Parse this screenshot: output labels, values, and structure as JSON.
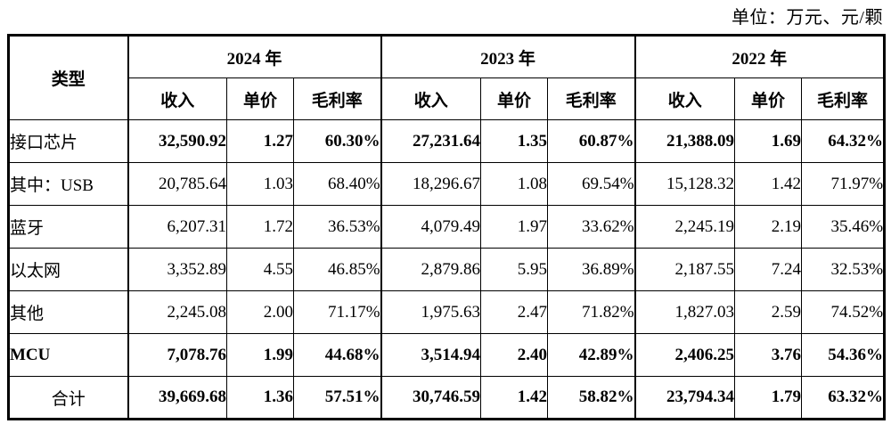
{
  "meta": {
    "unit_note": "单位：万元、元/颗"
  },
  "table": {
    "type": "table",
    "corner_header": "类型",
    "year_groups": [
      {
        "label": "2024 年"
      },
      {
        "label": "2023 年"
      },
      {
        "label": "2022 年"
      }
    ],
    "sub_headers": [
      "收入",
      "单价",
      "毛利率"
    ],
    "rows": [
      {
        "label": "接口芯片",
        "bold_label": false,
        "bold_values": true,
        "center_label": false,
        "values": [
          "32,590.92",
          "1.27",
          "60.30%",
          "27,231.64",
          "1.35",
          "60.87%",
          "21,388.09",
          "1.69",
          "64.32%"
        ]
      },
      {
        "label": "其中：USB",
        "bold_label": false,
        "bold_values": false,
        "center_label": false,
        "values": [
          "20,785.64",
          "1.03",
          "68.40%",
          "18,296.67",
          "1.08",
          "69.54%",
          "15,128.32",
          "1.42",
          "71.97%"
        ]
      },
      {
        "label": "蓝牙",
        "bold_label": false,
        "bold_values": false,
        "center_label": false,
        "values": [
          "6,207.31",
          "1.72",
          "36.53%",
          "4,079.49",
          "1.97",
          "33.62%",
          "2,245.19",
          "2.19",
          "35.46%"
        ]
      },
      {
        "label": "以太网",
        "bold_label": false,
        "bold_values": false,
        "center_label": false,
        "values": [
          "3,352.89",
          "4.55",
          "46.85%",
          "2,879.86",
          "5.95",
          "36.89%",
          "2,187.55",
          "7.24",
          "32.53%"
        ]
      },
      {
        "label": "其他",
        "bold_label": false,
        "bold_values": false,
        "center_label": false,
        "values": [
          "2,245.08",
          "2.00",
          "71.17%",
          "1,975.63",
          "2.47",
          "71.82%",
          "1,827.03",
          "2.59",
          "74.52%"
        ]
      },
      {
        "label": "MCU",
        "bold_label": true,
        "bold_values": true,
        "center_label": false,
        "values": [
          "7,078.76",
          "1.99",
          "44.68%",
          "3,514.94",
          "2.40",
          "42.89%",
          "2,406.25",
          "3.76",
          "54.36%"
        ]
      },
      {
        "label": "合计",
        "bold_label": false,
        "bold_values": true,
        "center_label": true,
        "values": [
          "39,669.68",
          "1.36",
          "57.51%",
          "30,746.59",
          "1.42",
          "58.82%",
          "23,794.34",
          "1.79",
          "63.32%"
        ]
      }
    ]
  }
}
